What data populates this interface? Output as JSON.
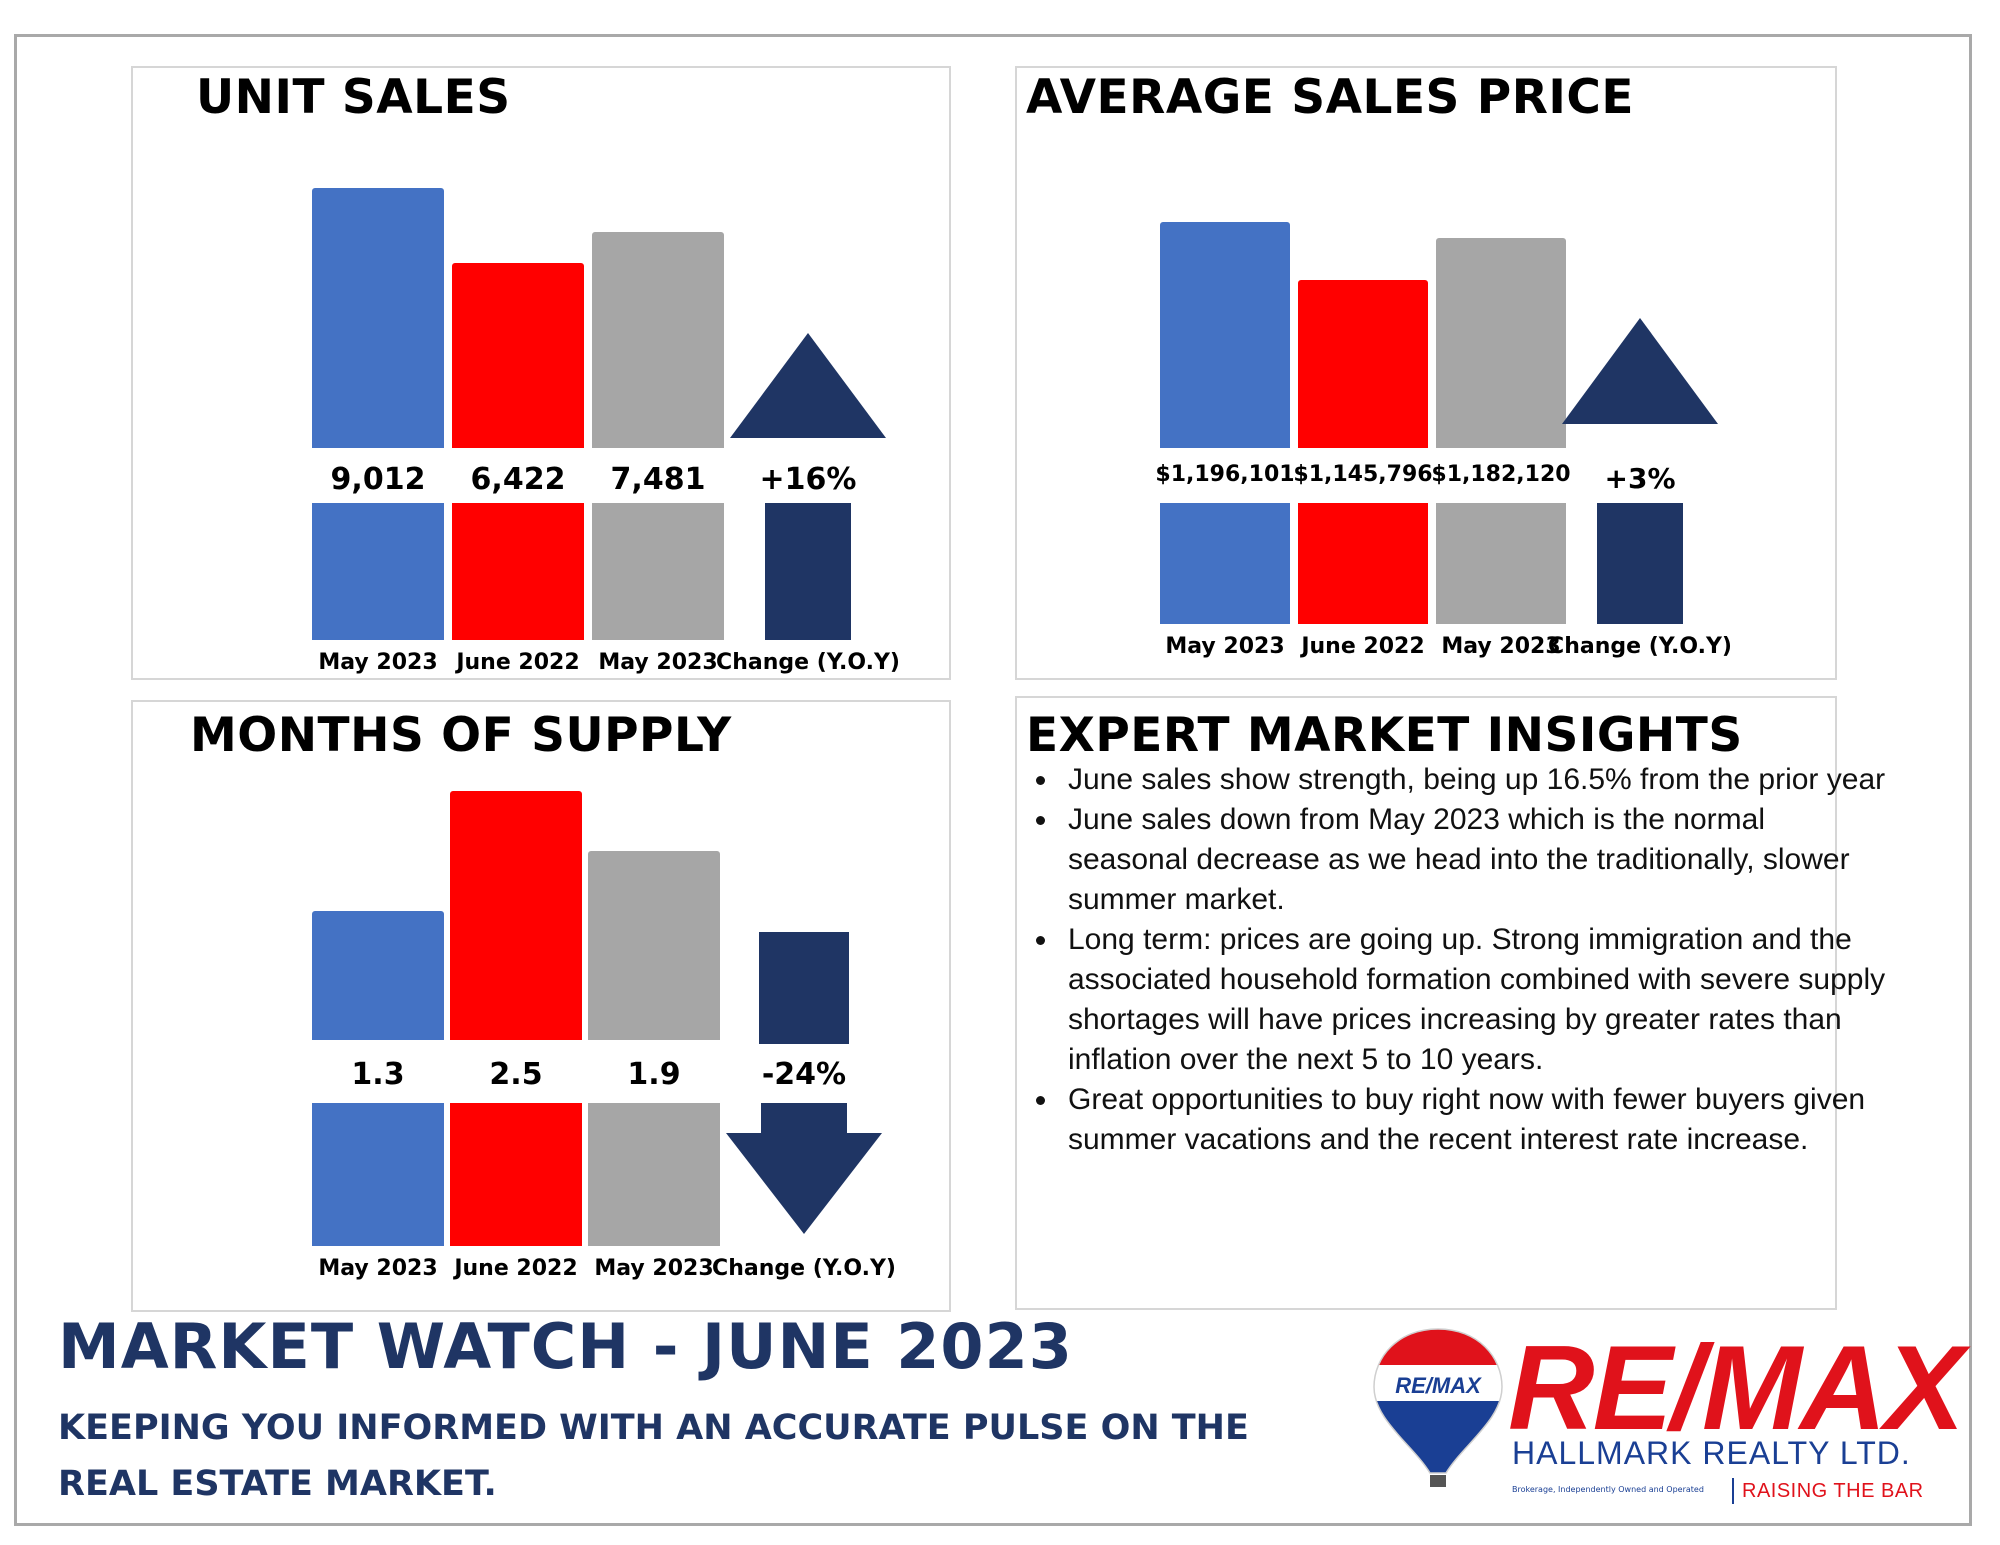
{
  "colors": {
    "blue": "#4472c4",
    "red": "#ff0000",
    "gray": "#a6a6a6",
    "navy": "#1f3564"
  },
  "chart_data": [
    {
      "type": "bar",
      "title": "UNIT SALES",
      "categories": [
        "May 2023",
        "June 2022",
        "May 2023"
      ],
      "values": [
        9012,
        6422,
        7481
      ],
      "value_labels": [
        "9,012",
        "6,422",
        "7,481"
      ],
      "change": {
        "label": "Change (Y.O.Y)",
        "value": "+16%",
        "direction": "up"
      }
    },
    {
      "type": "bar",
      "title": "AVERAGE SALES PRICE",
      "categories": [
        "May 2023",
        "June 2022",
        "May 2023"
      ],
      "values": [
        1196101,
        1145796,
        1182120
      ],
      "value_labels": [
        "$1,196,101",
        "$1,145,796",
        "$1,182,120"
      ],
      "change": {
        "label": "Change (Y.O.Y)",
        "value": "+3%",
        "direction": "up"
      }
    },
    {
      "type": "bar",
      "title": "MONTHS OF SUPPLY",
      "categories": [
        "May 2023",
        "June 2022",
        "May 2023"
      ],
      "values": [
        1.3,
        2.5,
        1.9
      ],
      "value_labels": [
        "1.3",
        "2.5",
        "1.9"
      ],
      "change": {
        "label": "Change (Y.O.Y)",
        "value": "-24%",
        "direction": "down"
      }
    }
  ],
  "insights": {
    "title": "EXPERT MARKET INSIGHTS",
    "items": [
      "June sales show strength, being up 16.5% from the prior year",
      "June sales down from May 2023 which is the normal seasonal decrease as we head into the traditionally, slower summer market.",
      "Long term: prices are going up. Strong immigration and the associated household formation combined with severe supply shortages will have prices increasing by greater rates than inflation over the next 5 to 10 years.",
      "Great opportunities to buy right now with fewer buyers given summer vacations and the recent interest rate increase."
    ]
  },
  "footer": {
    "title": "MARKET WATCH - JUNE 2023",
    "subtitle": "KEEPING YOU INFORMED WITH AN ACCURATE PULSE ON THE REAL ESTATE MARKET."
  },
  "logo": {
    "balloon_text": "RE/MAX",
    "wordmark": "RE/MAX",
    "company": "HALLMARK REALTY LTD.",
    "fine_print": "Brokerage, Independently Owned and Operated",
    "tagline": "RAISING THE BAR"
  }
}
